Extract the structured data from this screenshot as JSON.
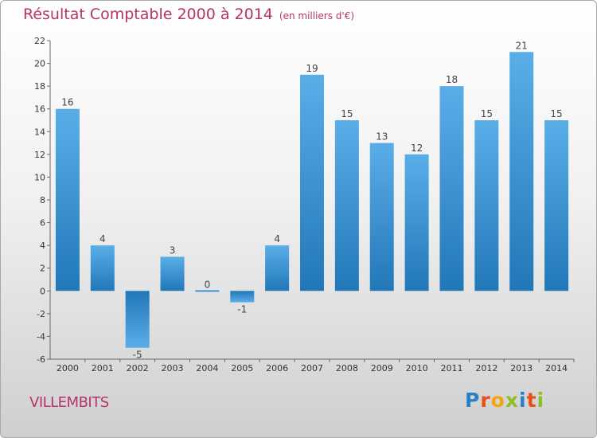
{
  "chart_data": {
    "type": "bar",
    "title": "Résultat Comptable 2000 à 2014",
    "subtitle": "(en milliers d'€)",
    "categories": [
      "2000",
      "2001",
      "2002",
      "2003",
      "2004",
      "2005",
      "2006",
      "2007",
      "2008",
      "2009",
      "2010",
      "2011",
      "2012",
      "2013",
      "2014"
    ],
    "values": [
      16,
      4,
      -5,
      3,
      0,
      -1,
      4,
      19,
      15,
      13,
      12,
      18,
      15,
      21,
      15
    ],
    "ylim": [
      -6,
      22
    ],
    "yticks": [
      -6,
      -4,
      -2,
      0,
      2,
      4,
      6,
      8,
      10,
      12,
      14,
      16,
      18,
      20,
      22
    ],
    "xlabel": "",
    "ylabel": "",
    "grid": false,
    "colors": {
      "bar_light": "#5aaee8",
      "bar_dark": "#2277b8",
      "title": "#b8336a"
    }
  },
  "footer": {
    "place": "VILLEMBITS",
    "logo_letters": [
      "P",
      "r",
      "o",
      "x",
      "i",
      "t",
      "i"
    ],
    "logo_colors": [
      "#2a7fc4",
      "#e94e1b",
      "#f2a30f",
      "#8cbf26",
      "#2a7fc4",
      "#e94e1b",
      "#8cbf26"
    ]
  }
}
